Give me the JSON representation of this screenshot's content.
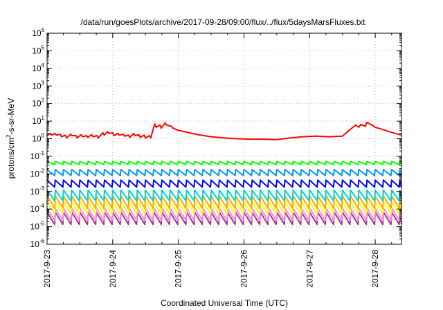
{
  "chart_data": {
    "type": "line",
    "title": "/data/run/goesPlots/archive/2017-09-28/09:00/flux/../flux/5daysMarsFluxes.txt",
    "xlabel": "Coordinated Universal Time (UTC)",
    "ylabel": {
      "base": "protons/cm",
      "exp": "2",
      "rest": "-s-sr-MeV"
    },
    "x_ticks": [
      "2017-9-23",
      "2017-9-24",
      "2017-9-25",
      "2017-9-26",
      "2017-9-27",
      "2017-9-28"
    ],
    "x_range_days": [
      0,
      5.4
    ],
    "y_scale": "log",
    "ylim": [
      1e-06,
      1000000.0
    ],
    "y_tick_exponents": [
      -6,
      -5,
      -4,
      -3,
      -2,
      -1,
      0,
      1,
      2,
      3,
      4,
      5,
      6
    ],
    "grid": true,
    "series": [
      {
        "color": "#ff0000",
        "x": [
          0.0,
          0.05,
          0.07,
          0.12,
          0.14,
          0.2,
          0.22,
          0.28,
          0.3,
          0.36,
          0.38,
          0.44,
          0.46,
          0.52,
          0.54,
          0.6,
          0.62,
          0.68,
          0.7,
          0.76,
          0.78,
          0.85,
          0.87,
          0.92,
          0.94,
          1.0,
          1.02,
          1.08,
          1.1,
          1.16,
          1.18,
          1.24,
          1.26,
          1.32,
          1.34,
          1.4,
          1.42,
          1.48,
          1.5,
          1.56,
          1.58,
          1.64,
          1.66,
          1.72,
          1.74,
          1.8,
          1.82,
          1.9,
          1.92,
          2.0,
          2.1,
          2.3,
          2.5,
          2.7,
          2.9,
          3.1,
          3.3,
          3.5,
          3.7,
          3.9,
          4.1,
          4.3,
          4.5,
          4.7,
          4.75,
          4.78,
          4.85,
          4.87,
          4.95,
          5.0,
          5.1,
          5.25,
          5.4
        ],
        "values": [
          1.5,
          2.0,
          1.6,
          2.0,
          1.6,
          1.8,
          1.3,
          1.6,
          1.1,
          1.8,
          1.5,
          1.5,
          1.1,
          1.7,
          1.3,
          1.5,
          1.2,
          1.7,
          1.3,
          1.5,
          1.1,
          2.2,
          1.6,
          2.5,
          2.0,
          2.2,
          1.5,
          2.0,
          1.6,
          1.8,
          1.4,
          1.6,
          1.2,
          2.0,
          1.5,
          1.7,
          1.2,
          1.6,
          1.1,
          1.5,
          1.1,
          7.0,
          4.5,
          6.0,
          4.0,
          8.0,
          6.0,
          5.0,
          4.0,
          3.0,
          2.5,
          1.7,
          1.3,
          1.1,
          1.0,
          0.95,
          0.95,
          0.9,
          1.1,
          1.3,
          1.4,
          1.3,
          1.4,
          6.0,
          4.5,
          6.5,
          5.0,
          8.5,
          6.0,
          4.5,
          3.5,
          2.3,
          1.6
        ]
      },
      {
        "color": "#00ff00",
        "center": 0.042,
        "amp": 1.5
      },
      {
        "color": "#0096ff",
        "center": 0.012,
        "amp": 2.2
      },
      {
        "color": "#0000ff",
        "center": 0.0028,
        "amp": 2.5
      },
      {
        "color": "#00d2d2",
        "center": 0.0006,
        "amp": 4
      },
      {
        "color": "#ffa500",
        "center": 0.00025,
        "amp": 5
      },
      {
        "color": "#ffff00",
        "center": 0.00012,
        "amp": 5
      },
      {
        "color": "#ff80ff",
        "center": 5e-05,
        "amp": 5
      },
      {
        "color": "#a03c6e",
        "center": 3e-05,
        "amp": 5
      }
    ]
  }
}
